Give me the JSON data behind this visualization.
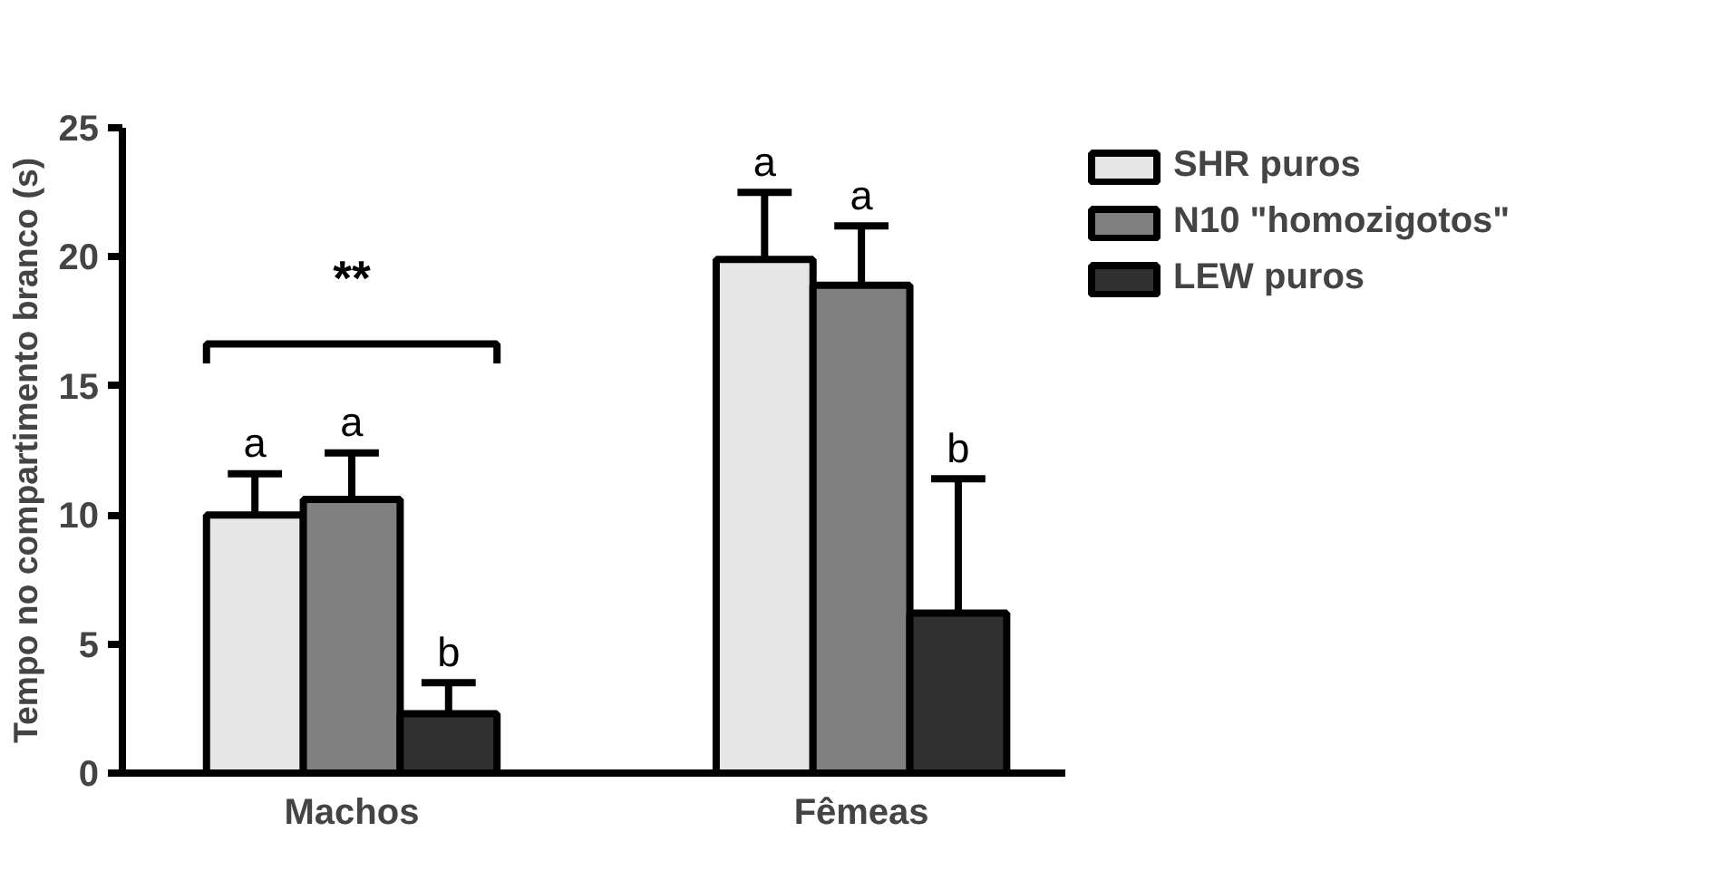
{
  "chart_data": {
    "type": "bar",
    "ylabel": "Tempo no compartimento branco (s)",
    "categories": [
      "Machos",
      "Fêmeas"
    ],
    "ylim": [
      0,
      25
    ],
    "yticks": [
      0,
      5,
      10,
      15,
      20,
      25
    ],
    "grid": false,
    "legend": "right",
    "series": [
      {
        "name": "SHR puros",
        "color": "#e6e6e6",
        "values": [
          10.0,
          19.9
        ],
        "errors": [
          1.6,
          2.6
        ]
      },
      {
        "name": "N10 \"homozigotos\"",
        "color": "#808080",
        "values": [
          10.6,
          18.9
        ],
        "errors": [
          1.8,
          2.3
        ]
      },
      {
        "name": "LEW puros",
        "color": "#303030",
        "values": [
          2.3,
          6.2
        ],
        "errors": [
          1.2,
          5.2
        ]
      }
    ],
    "annotations": [
      "**",
      "a",
      "a",
      "b",
      "a",
      "a",
      "b"
    ]
  }
}
